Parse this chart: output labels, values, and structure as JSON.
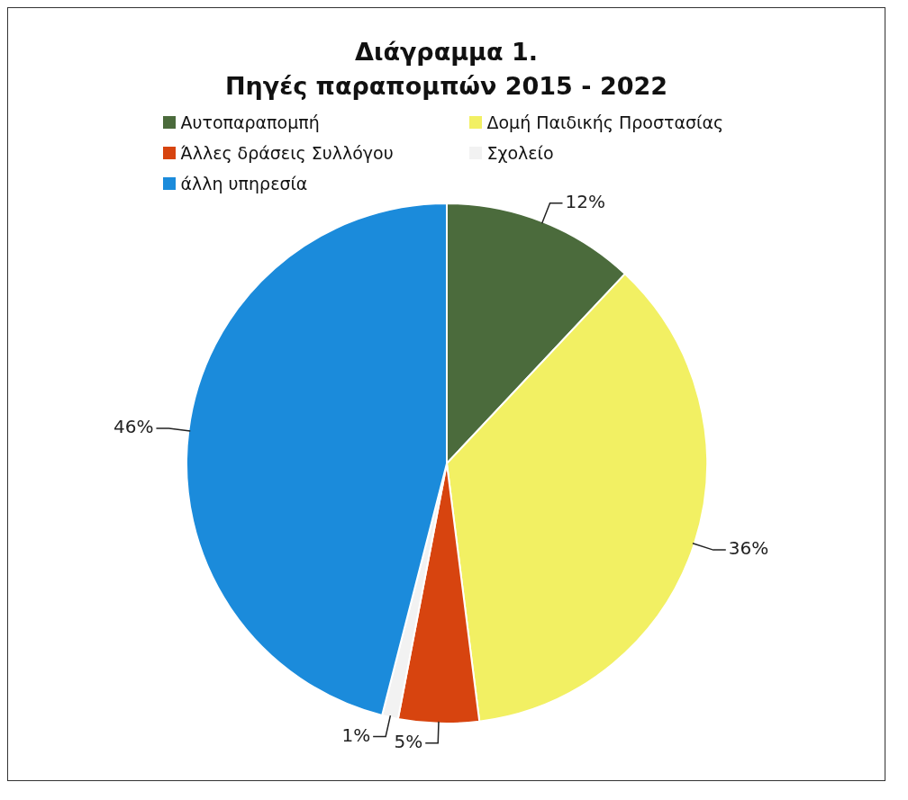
{
  "chart_data": {
    "type": "pie",
    "title": "Διάγραμμα 1.\nΠηγές παραπομπών 2015 - 2022",
    "categories": [
      "Αυτοπαραπομπή",
      "Δομή Παιδικής Προστασίας",
      "Άλλες δράσεις Συλλόγου",
      "Σχολείο",
      "άλλη υπηρεσία"
    ],
    "values": [
      12,
      36,
      5,
      1,
      46
    ],
    "colors": [
      "#4b6b3c",
      "#f2f063",
      "#d7440f",
      "#f2f2f2",
      "#1b8bdb"
    ],
    "value_labels": [
      "12%",
      "36%",
      "5%",
      "1%",
      "46%"
    ],
    "legend": "top"
  }
}
